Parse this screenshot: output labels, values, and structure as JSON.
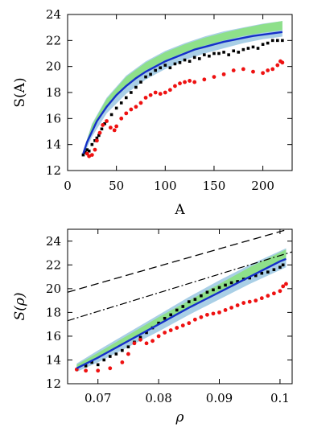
{
  "chart_data": [
    {
      "type": "scatter",
      "xlabel": "A",
      "ylabel": "S(A)",
      "xlim": [
        0,
        230
      ],
      "ylim": [
        12,
        24
      ],
      "xticks": [
        0,
        50,
        100,
        150,
        200
      ],
      "yticks": [
        12,
        14,
        16,
        18,
        20,
        22,
        24
      ],
      "xtick_labels": [
        "0",
        "50",
        "100",
        "150",
        "200"
      ],
      "ytick_labels": [
        "12",
        "14",
        "16",
        "18",
        "20",
        "22",
        "24"
      ],
      "grid": false,
      "colors": {
        "fit": "#1530c8",
        "band_outer": "#a9cfe6",
        "band_inner": "#8ee08a",
        "black_points": "#000000",
        "red_points": "#ee1111"
      },
      "fit_curve": {
        "x": [
          16,
          20,
          25,
          30,
          40,
          50,
          60,
          70,
          80,
          90,
          100,
          110,
          120,
          130,
          140,
          150,
          160,
          170,
          180,
          190,
          200,
          210,
          220
        ],
        "y": [
          13.3,
          14.2,
          15.0,
          15.8,
          16.9,
          17.8,
          18.5,
          19.1,
          19.6,
          20.0,
          20.4,
          20.7,
          21.0,
          21.3,
          21.5,
          21.7,
          21.9,
          22.05,
          22.2,
          22.35,
          22.45,
          22.55,
          22.65
        ]
      },
      "band_outer": {
        "x": [
          16,
          25,
          40,
          60,
          80,
          100,
          120,
          140,
          160,
          180,
          200,
          220
        ],
        "upper": [
          13.5,
          15.6,
          17.6,
          19.3,
          20.4,
          21.2,
          21.8,
          22.3,
          22.7,
          23.0,
          23.3,
          23.5
        ],
        "lower": [
          13.1,
          14.6,
          16.4,
          17.9,
          19.0,
          19.8,
          20.5,
          21.0,
          21.4,
          21.8,
          22.1,
          22.3
        ]
      },
      "band_inner": {
        "x": [
          16,
          25,
          40,
          60,
          80,
          100,
          120,
          140,
          160,
          180,
          200,
          220
        ],
        "upper": [
          13.5,
          15.5,
          17.5,
          19.2,
          20.3,
          21.1,
          21.7,
          22.2,
          22.6,
          22.95,
          23.25,
          23.5
        ],
        "lower": [
          13.3,
          15.1,
          17.0,
          18.6,
          19.7,
          20.5,
          21.1,
          21.6,
          22.0,
          22.35,
          22.6,
          22.8
        ]
      },
      "series": [
        {
          "x": [
            16,
            18,
            20,
            22,
            25,
            28,
            30,
            32,
            35,
            38,
            40,
            45,
            50,
            55,
            60,
            65,
            70,
            75,
            80,
            85,
            90,
            95,
            100,
            105,
            110,
            115,
            120,
            125,
            130,
            135,
            140,
            145,
            150,
            155,
            160,
            165,
            170,
            175,
            180,
            185,
            190,
            195,
            200,
            205,
            210,
            215,
            220
          ],
          "y": [
            13.2,
            13.4,
            13.6,
            13.5,
            14.0,
            14.3,
            14.5,
            14.7,
            15.2,
            15.6,
            15.8,
            16.3,
            16.8,
            17.2,
            17.6,
            18.0,
            18.4,
            18.8,
            19.2,
            19.4,
            19.7,
            19.9,
            20.1,
            19.9,
            20.2,
            20.3,
            20.5,
            20.4,
            20.7,
            20.6,
            20.9,
            20.8,
            21.0,
            21.0,
            21.1,
            20.9,
            21.2,
            21.1,
            21.3,
            21.4,
            21.5,
            21.4,
            21.7,
            21.8,
            22.0,
            22.0,
            22.0
          ],
          "color": "#000000"
        },
        {
          "x": [
            20,
            22,
            25,
            28,
            30,
            33,
            36,
            40,
            44,
            48,
            50,
            55,
            60,
            65,
            70,
            75,
            80,
            85,
            90,
            95,
            100,
            105,
            110,
            115,
            120,
            125,
            130,
            140,
            150,
            160,
            170,
            180,
            190,
            200,
            205,
            210,
            215,
            218,
            220
          ],
          "y": [
            13.3,
            13.1,
            13.2,
            13.6,
            14.3,
            14.9,
            15.5,
            15.8,
            15.3,
            15.1,
            15.4,
            16.0,
            16.4,
            16.7,
            16.9,
            17.2,
            17.6,
            17.8,
            18.0,
            17.9,
            18.0,
            18.2,
            18.5,
            18.7,
            18.8,
            18.9,
            18.8,
            19.0,
            19.2,
            19.4,
            19.7,
            19.8,
            19.6,
            19.5,
            19.7,
            19.8,
            20.1,
            20.4,
            20.3
          ],
          "color": "#ee1111"
        }
      ]
    },
    {
      "type": "scatter",
      "xlabel": "ρ",
      "ylabel": "S(ρ)",
      "xlim": [
        0.065,
        0.102
      ],
      "ylim": [
        12,
        25
      ],
      "xticks": [
        0.07,
        0.08,
        0.09,
        0.1
      ],
      "yticks": [
        12,
        14,
        16,
        18,
        20,
        22,
        24
      ],
      "xtick_labels": [
        "0.07",
        "0.08",
        "0.09",
        "0.1"
      ],
      "ytick_labels": [
        "12",
        "14",
        "16",
        "18",
        "20",
        "22",
        "24"
      ],
      "grid": false,
      "colors": {
        "fit": "#1530c8",
        "band_outer": "#a9cfe6",
        "band_inner": "#8ee08a",
        "black_points": "#000000",
        "red_points": "#ee1111",
        "dashed": "#000000"
      },
      "fit_curve": {
        "x": [
          0.0665,
          0.07,
          0.075,
          0.08,
          0.085,
          0.09,
          0.095,
          0.1,
          0.101
        ],
        "y": [
          13.3,
          14.2,
          15.6,
          17.0,
          18.4,
          19.7,
          21.0,
          22.3,
          22.5
        ]
      },
      "band_outer": {
        "x": [
          0.0665,
          0.07,
          0.075,
          0.08,
          0.085,
          0.09,
          0.095,
          0.101
        ],
        "upper": [
          13.7,
          14.8,
          16.3,
          17.8,
          19.3,
          20.7,
          22.0,
          23.4
        ],
        "lower": [
          13.0,
          13.8,
          15.1,
          16.4,
          17.8,
          19.1,
          20.4,
          21.8
        ]
      },
      "band_inner": {
        "x": [
          0.0665,
          0.07,
          0.075,
          0.08,
          0.085,
          0.09,
          0.095,
          0.101
        ],
        "upper": [
          13.6,
          14.6,
          16.1,
          17.6,
          19.0,
          20.4,
          21.8,
          23.3
        ],
        "lower": [
          13.3,
          14.2,
          15.6,
          17.0,
          18.4,
          19.8,
          21.1,
          22.6
        ]
      },
      "dashed_line": {
        "x": [
          0.065,
          0.102
        ],
        "y": [
          19.7,
          25.1
        ]
      },
      "dashdot_line": {
        "x": [
          0.065,
          0.102
        ],
        "y": [
          17.3,
          23.1
        ]
      },
      "series": [
        {
          "x": [
            0.0665,
            0.068,
            0.069,
            0.07,
            0.071,
            0.072,
            0.073,
            0.074,
            0.075,
            0.076,
            0.077,
            0.078,
            0.079,
            0.08,
            0.081,
            0.082,
            0.083,
            0.084,
            0.085,
            0.086,
            0.087,
            0.088,
            0.089,
            0.09,
            0.091,
            0.092,
            0.093,
            0.094,
            0.095,
            0.096,
            0.097,
            0.098,
            0.099,
            0.1,
            0.1005
          ],
          "y": [
            13.2,
            13.5,
            13.8,
            13.6,
            14.0,
            14.3,
            14.5,
            14.8,
            15.1,
            15.5,
            15.9,
            16.3,
            16.7,
            17.1,
            17.5,
            17.8,
            18.2,
            18.5,
            18.9,
            19.1,
            19.4,
            19.7,
            19.9,
            20.1,
            20.3,
            20.5,
            20.6,
            20.8,
            20.9,
            21.1,
            21.3,
            21.4,
            21.6,
            21.8,
            22.0
          ],
          "color": "#000000"
        },
        {
          "x": [
            0.0665,
            0.068,
            0.07,
            0.072,
            0.074,
            0.075,
            0.076,
            0.077,
            0.078,
            0.079,
            0.08,
            0.081,
            0.082,
            0.083,
            0.084,
            0.085,
            0.086,
            0.087,
            0.088,
            0.089,
            0.09,
            0.091,
            0.092,
            0.093,
            0.094,
            0.095,
            0.096,
            0.097,
            0.098,
            0.099,
            0.1,
            0.1005,
            0.101
          ],
          "y": [
            13.2,
            13.1,
            13.1,
            13.3,
            13.8,
            14.5,
            15.4,
            15.7,
            15.4,
            15.6,
            16.0,
            16.3,
            16.5,
            16.7,
            16.9,
            17.1,
            17.4,
            17.6,
            17.8,
            17.9,
            18.0,
            18.2,
            18.4,
            18.6,
            18.8,
            18.9,
            19.0,
            19.2,
            19.4,
            19.6,
            19.8,
            20.2,
            20.4
          ],
          "color": "#ee1111"
        }
      ]
    }
  ]
}
